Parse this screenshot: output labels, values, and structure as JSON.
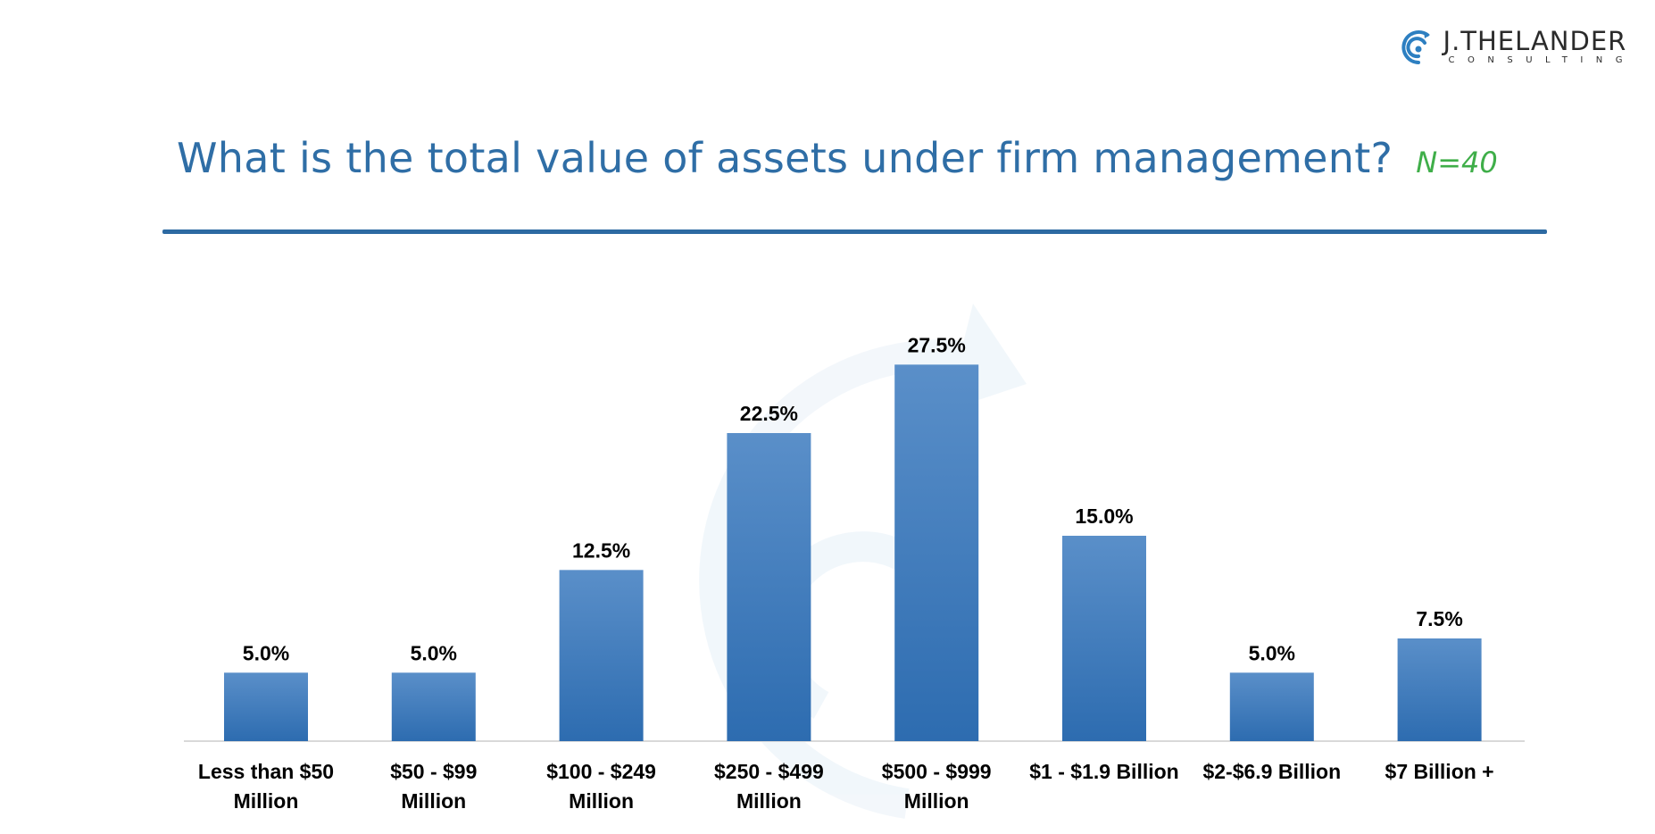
{
  "logo": {
    "name": "J.THELANDER",
    "subtitle": "CONSULTING"
  },
  "header": {
    "title": "What is the total value of assets under firm management?",
    "n_label": "N=40"
  },
  "colors": {
    "title": "#2f6ea6",
    "n_label": "#3fae49",
    "bar_top": "#5a8fc9",
    "bar_bottom": "#2d6cb0",
    "rule": "#2d6aa2"
  },
  "chart_data": {
    "type": "bar",
    "title": "What is the total value of assets under firm management?",
    "xlabel": "",
    "ylabel": "",
    "ylim": [
      0,
      30
    ],
    "grid": false,
    "legend": "none",
    "categories": [
      [
        "Less than $50",
        "Million"
      ],
      [
        "$50 - $99",
        "Million"
      ],
      [
        "$100 - $249",
        "Million"
      ],
      [
        "$250 - $499",
        "Million"
      ],
      [
        "$500 - $999",
        "Million"
      ],
      [
        "$1 - $1.9 Billion"
      ],
      [
        "$2-$6.9 Billion"
      ],
      [
        "$7 Billion +"
      ]
    ],
    "values": [
      5.0,
      5.0,
      12.5,
      22.5,
      27.5,
      15.0,
      5.0,
      7.5
    ],
    "value_labels": [
      "5.0%",
      "5.0%",
      "12.5%",
      "22.5%",
      "27.5%",
      "15.0%",
      "5.0%",
      "7.5%"
    ]
  }
}
